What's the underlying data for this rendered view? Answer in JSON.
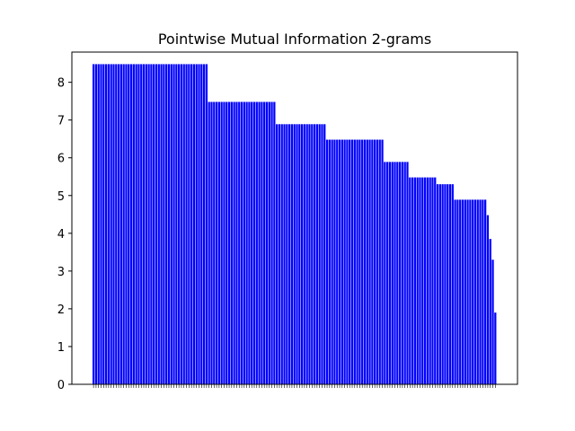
{
  "chart_data": {
    "type": "bar",
    "title": "Pointwise Mutual Information 2-grams",
    "xlabel": "",
    "ylabel": "",
    "ylim": [
      0,
      8.8
    ],
    "yticks": [
      0,
      1,
      2,
      3,
      4,
      5,
      6,
      7,
      8
    ],
    "bar_color": "#0000ff",
    "grid": false,
    "legend": "none",
    "values": [
      8.48,
      8.48,
      8.48,
      8.48,
      8.48,
      8.48,
      8.48,
      8.48,
      8.48,
      8.48,
      8.48,
      8.48,
      8.48,
      8.48,
      8.48,
      8.48,
      8.48,
      8.48,
      8.48,
      8.48,
      8.48,
      8.48,
      8.48,
      8.48,
      8.48,
      8.48,
      8.48,
      8.48,
      8.48,
      8.48,
      8.48,
      8.48,
      8.48,
      8.48,
      8.48,
      8.48,
      8.48,
      8.48,
      8.48,
      8.48,
      8.48,
      8.48,
      8.48,
      8.48,
      8.48,
      8.48,
      7.48,
      7.48,
      7.48,
      7.48,
      7.48,
      7.48,
      7.48,
      7.48,
      7.48,
      7.48,
      7.48,
      7.48,
      7.48,
      7.48,
      7.48,
      7.48,
      7.48,
      7.48,
      7.48,
      7.48,
      7.48,
      7.48,
      7.48,
      7.48,
      7.48,
      7.48,
      7.48,
      6.89,
      6.89,
      6.89,
      6.89,
      6.89,
      6.89,
      6.89,
      6.89,
      6.89,
      6.89,
      6.89,
      6.89,
      6.89,
      6.89,
      6.89,
      6.89,
      6.89,
      6.89,
      6.89,
      6.89,
      6.48,
      6.48,
      6.48,
      6.48,
      6.48,
      6.48,
      6.48,
      6.48,
      6.48,
      6.48,
      6.48,
      6.48,
      6.48,
      6.48,
      6.48,
      6.48,
      6.48,
      6.48,
      6.48,
      6.48,
      6.48,
      6.48,
      6.48,
      5.89,
      5.89,
      5.89,
      5.89,
      5.89,
      5.89,
      5.89,
      5.89,
      5.89,
      5.89,
      5.48,
      5.48,
      5.48,
      5.48,
      5.48,
      5.48,
      5.48,
      5.48,
      5.48,
      5.48,
      5.48,
      5.3,
      5.3,
      5.3,
      5.3,
      5.3,
      5.3,
      5.3,
      4.89,
      4.89,
      4.89,
      4.89,
      4.89,
      4.89,
      4.89,
      4.89,
      4.89,
      4.89,
      4.89,
      4.89,
      4.89,
      4.48,
      3.85,
      3.3,
      1.9
    ]
  }
}
